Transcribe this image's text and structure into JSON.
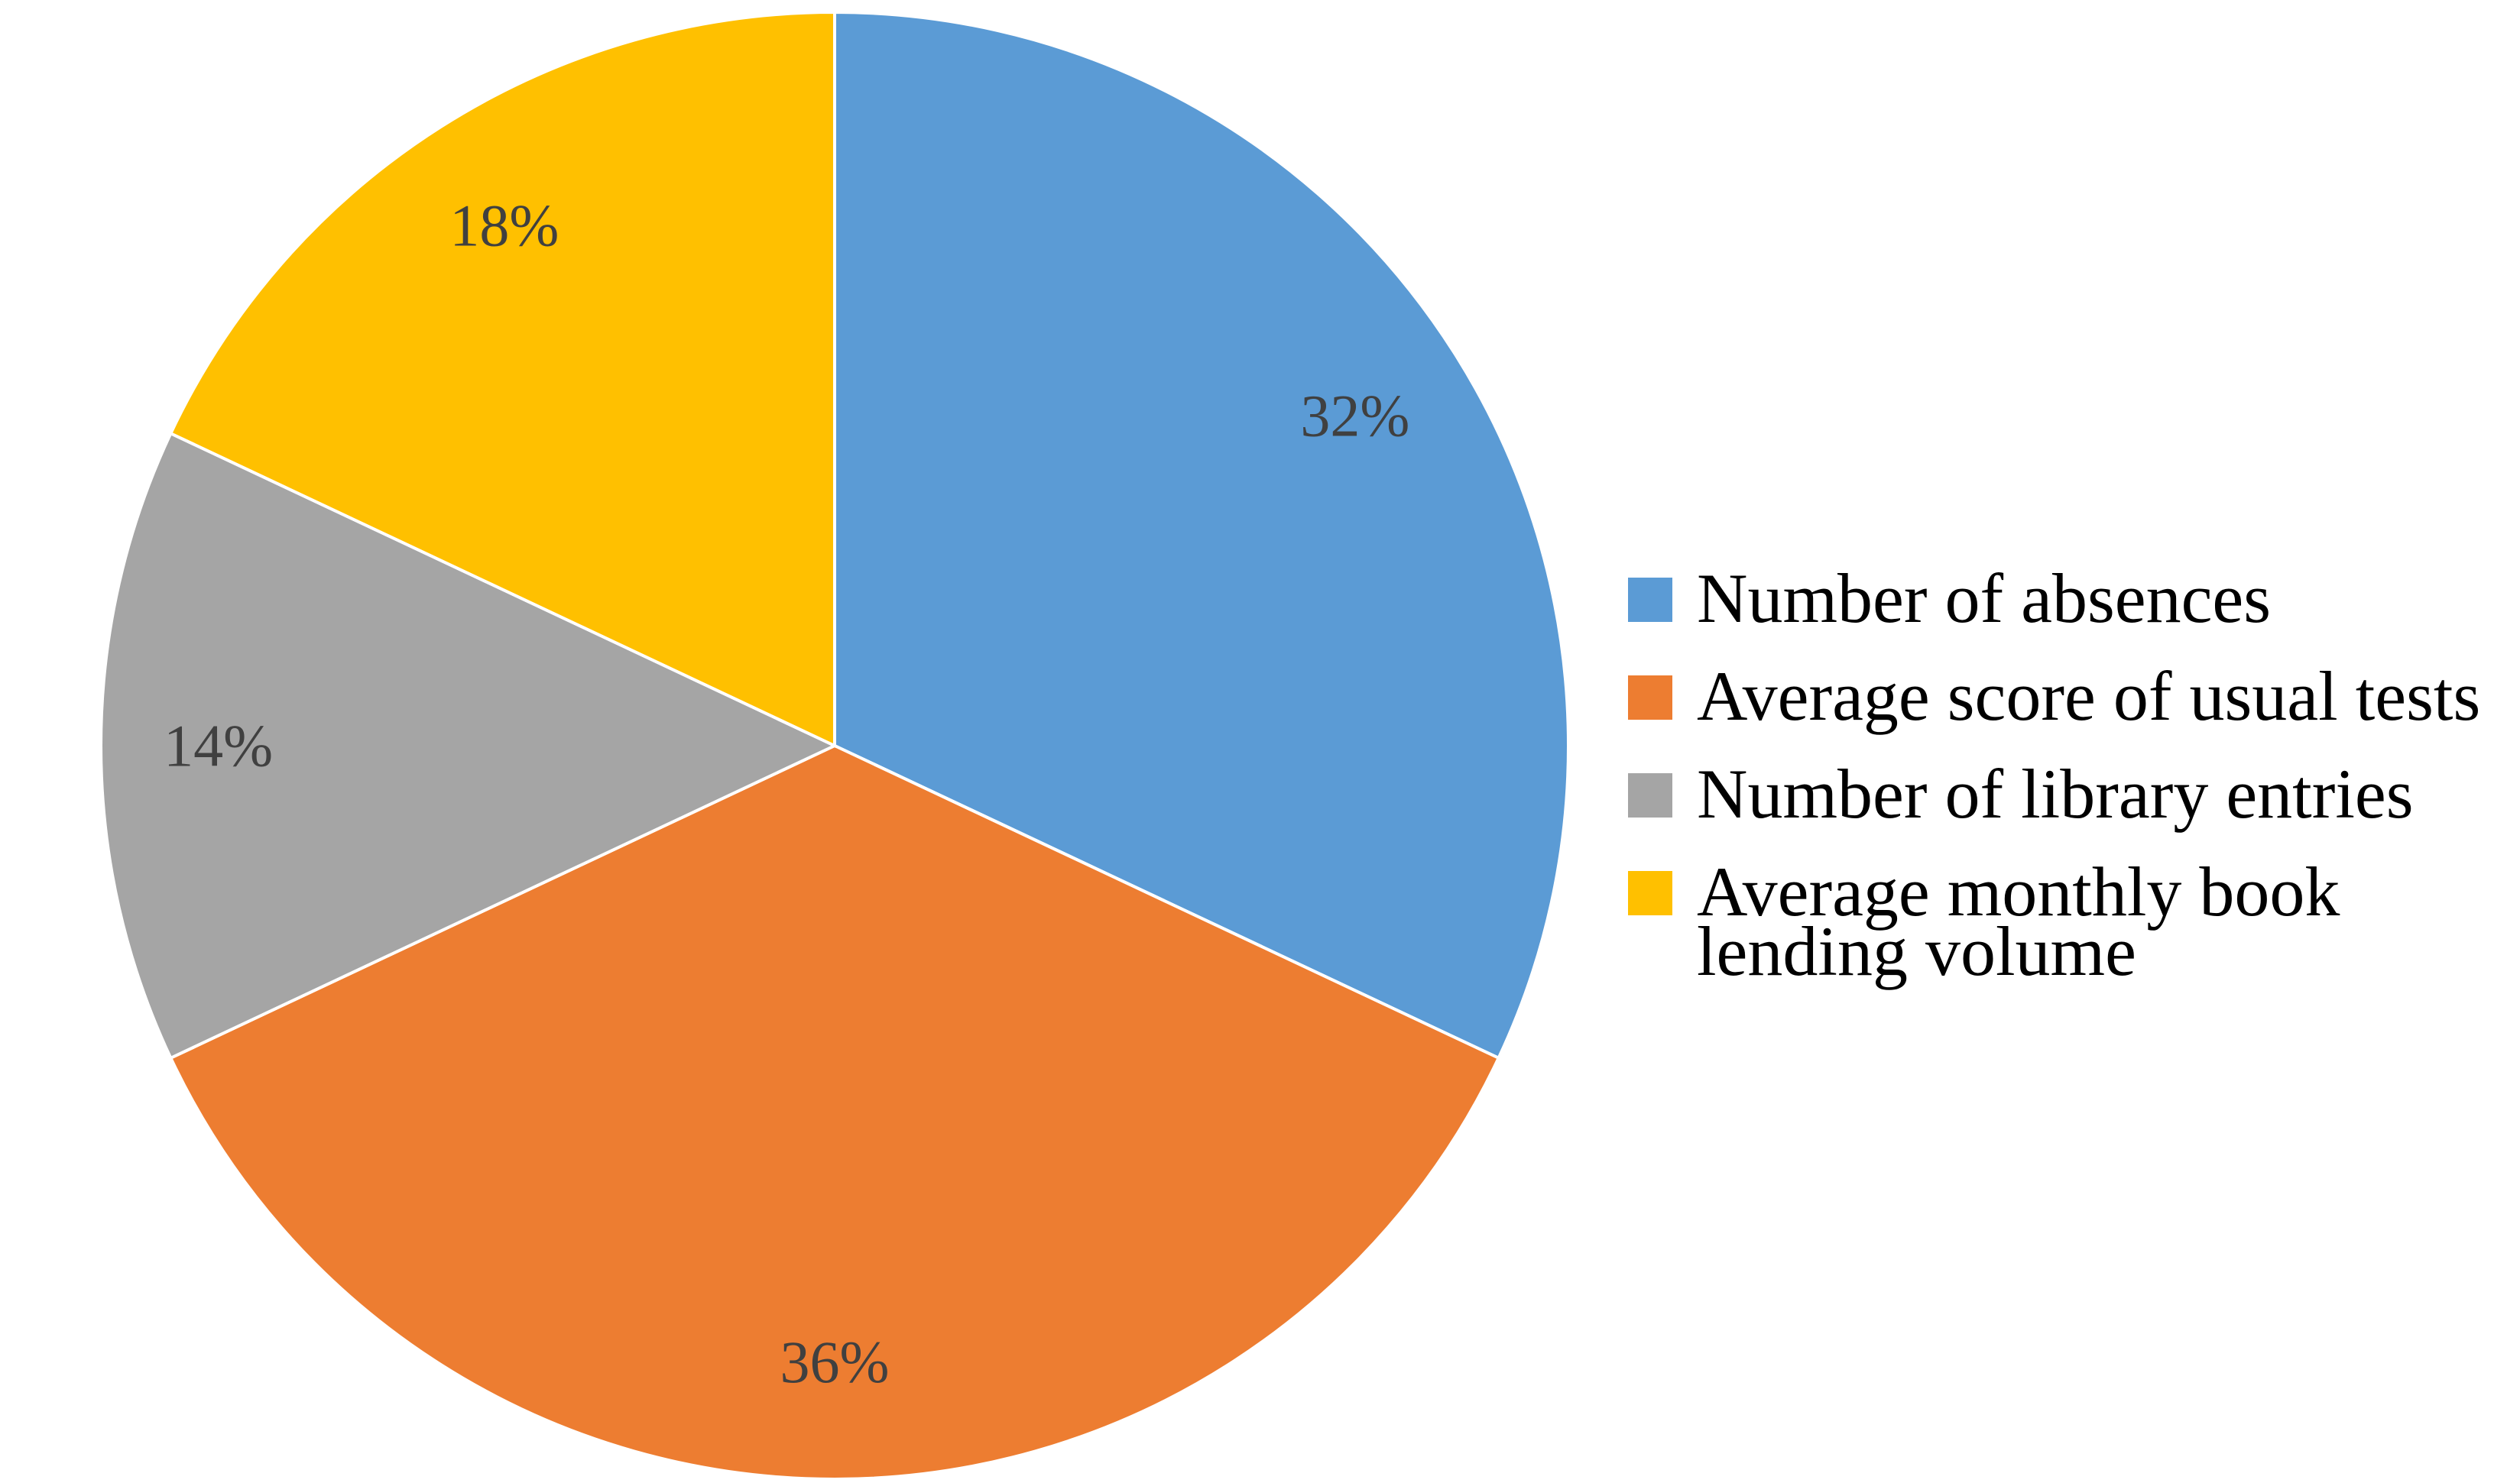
{
  "chart_data": {
    "type": "pie",
    "start_angle_deg": 0,
    "direction": "clockwise",
    "legend_position": "right",
    "slices": [
      {
        "name": "Number of absences",
        "value": 32,
        "label": "32%",
        "color": "#5B9BD5"
      },
      {
        "name": "Average score of usual tests",
        "value": 36,
        "label": "36%",
        "color": "#ED7D31"
      },
      {
        "name": "Number of library entries",
        "value": 14,
        "label": "14%",
        "color": "#A5A5A5"
      },
      {
        "name": "Average monthly book lending volume",
        "value": 18,
        "label": "18%",
        "color": "#FFC000"
      }
    ]
  }
}
